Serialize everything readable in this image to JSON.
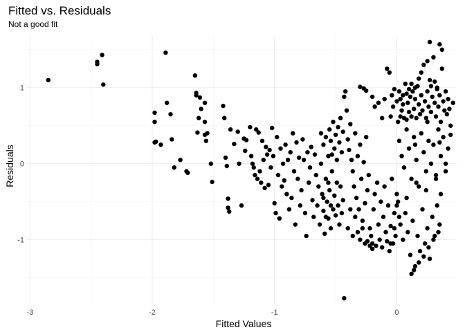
{
  "chart_data": {
    "type": "scatter",
    "title": "Fitted vs. Residuals",
    "subtitle": "Not a good fit",
    "xlabel": "Fitted Values",
    "ylabel": "Residuals",
    "xlim": [
      -3.03,
      0.49
    ],
    "ylim": [
      -1.85,
      1.68
    ],
    "x_ticks": [
      -3,
      -2,
      -1,
      0
    ],
    "x_tick_labels": [
      "-3",
      "-2",
      "-1",
      "0"
    ],
    "y_ticks": [
      -1,
      0,
      1
    ],
    "y_tick_labels": [
      "-1",
      "0",
      "1"
    ],
    "x_minor_ticks": [
      -2.5,
      -1.5,
      -0.5
    ],
    "y_minor_ticks": [
      -1.5,
      -0.5,
      0.5,
      1.5
    ],
    "grid": true,
    "legend": "none",
    "point_color": "#000000",
    "points": [
      [
        -2.85,
        1.1
      ],
      [
        -2.45,
        1.34
      ],
      [
        -2.45,
        1.31
      ],
      [
        -2.41,
        1.43
      ],
      [
        -2.4,
        1.04
      ],
      [
        -1.98,
        0.67
      ],
      [
        -1.98,
        0.55
      ],
      [
        -1.98,
        0.28
      ],
      [
        -1.97,
        0.29
      ],
      [
        -1.93,
        0.25
      ],
      [
        -1.89,
        1.46
      ],
      [
        -1.88,
        0.8
      ],
      [
        -1.85,
        0.65
      ],
      [
        -1.84,
        0.32
      ],
      [
        -1.82,
        -0.05
      ],
      [
        -1.77,
        0.05
      ],
      [
        -1.72,
        -0.1
      ],
      [
        -1.71,
        -0.12
      ],
      [
        -1.65,
        1.16
      ],
      [
        -1.64,
        0.93
      ],
      [
        -1.64,
        0.9
      ],
      [
        -1.63,
        0.41
      ],
      [
        -1.62,
        0.6
      ],
      [
        -1.61,
        0.87
      ],
      [
        -1.6,
        0.72
      ],
      [
        -1.57,
        0.8
      ],
      [
        -1.57,
        0.55
      ],
      [
        -1.57,
        0.38
      ],
      [
        -1.56,
        0.3
      ],
      [
        -1.55,
        0.4
      ],
      [
        -1.52,
        0.0
      ],
      [
        -1.51,
        -0.24
      ],
      [
        -1.42,
        0.76
      ],
      [
        -1.41,
        0.6
      ],
      [
        -1.4,
        0.08
      ],
      [
        -1.39,
        -0.03
      ],
      [
        -1.38,
        -0.46
      ],
      [
        -1.38,
        -0.58
      ],
      [
        -1.37,
        -0.63
      ],
      [
        -1.36,
        0.45
      ],
      [
        -1.33,
        0.26
      ],
      [
        -1.3,
        0.42
      ],
      [
        -1.29,
        0.0
      ],
      [
        -1.27,
        -0.55
      ],
      [
        -1.25,
        0.33
      ],
      [
        -1.24,
        0.17
      ],
      [
        -1.23,
        0.31
      ],
      [
        -1.2,
        0.48
      ],
      [
        -1.19,
        0.1
      ],
      [
        -1.18,
        0.0
      ],
      [
        -1.17,
        -0.05
      ],
      [
        -1.16,
        -0.15
      ],
      [
        -1.15,
        0.45
      ],
      [
        -1.14,
        -0.2
      ],
      [
        -1.13,
        0.41
      ],
      [
        -1.12,
        -0.1
      ],
      [
        -1.11,
        -0.25
      ],
      [
        -1.1,
        0.3
      ],
      [
        -1.09,
        0.05
      ],
      [
        -1.08,
        -0.32
      ],
      [
        -1.07,
        0.22
      ],
      [
        -1.06,
        0.12
      ],
      [
        -1.05,
        -0.28
      ],
      [
        -1.04,
        0.18
      ],
      [
        -1.03,
        -0.05
      ],
      [
        -1.02,
        0.47
      ],
      [
        -1.01,
        0.1
      ],
      [
        -1.0,
        -0.52
      ],
      [
        -0.99,
        -0.65
      ],
      [
        -0.98,
        0.35
      ],
      [
        -0.97,
        -0.15
      ],
      [
        -0.96,
        -0.72
      ],
      [
        -0.95,
        0.2
      ],
      [
        -0.94,
        -0.3
      ],
      [
        -0.93,
        0.0
      ],
      [
        -0.92,
        -0.22
      ],
      [
        -0.91,
        0.25
      ],
      [
        -0.9,
        -0.4
      ],
      [
        -0.89,
        0.05
      ],
      [
        -0.88,
        -0.6
      ],
      [
        -0.87,
        0.15
      ],
      [
        -0.86,
        -0.45
      ],
      [
        -0.85,
        0.4
      ],
      [
        -0.84,
        -0.1
      ],
      [
        -0.83,
        -0.8
      ],
      [
        -0.82,
        0.28
      ],
      [
        -0.81,
        -0.2
      ],
      [
        -0.8,
        0.08
      ],
      [
        -0.79,
        -0.55
      ],
      [
        -0.78,
        -0.35
      ],
      [
        -0.77,
        0.32
      ],
      [
        -0.76,
        0.05
      ],
      [
        -0.75,
        -0.65
      ],
      [
        -0.74,
        -0.95
      ],
      [
        -0.73,
        0.15
      ],
      [
        -0.72,
        -0.25
      ],
      [
        -0.71,
        -0.05
      ],
      [
        -0.7,
        0.22
      ],
      [
        -0.69,
        -0.48
      ],
      [
        -0.68,
        -0.7
      ],
      [
        -0.67,
        0.12
      ],
      [
        -0.66,
        -0.15
      ],
      [
        -0.65,
        -0.55
      ],
      [
        -0.64,
        -0.3
      ],
      [
        -0.63,
        -0.8
      ],
      [
        -0.62,
        0.0
      ],
      [
        -0.61,
        -0.4
      ],
      [
        -0.6,
        -0.62
      ],
      [
        -0.59,
        -0.92
      ],
      [
        -0.58,
        -0.2
      ],
      [
        -0.57,
        -0.5
      ],
      [
        -0.56,
        -0.72
      ],
      [
        -0.55,
        -0.35
      ],
      [
        -0.54,
        -0.85
      ],
      [
        -0.53,
        -0.1
      ],
      [
        -0.52,
        -0.6
      ],
      [
        -0.51,
        -0.42
      ],
      [
        -0.5,
        -0.68
      ],
      [
        -0.49,
        -0.25
      ],
      [
        -0.48,
        -0.55
      ],
      [
        -0.47,
        -0.8
      ],
      [
        -0.46,
        -0.3
      ],
      [
        -0.45,
        -0.65
      ],
      [
        -0.44,
        -0.48
      ],
      [
        -0.43,
        -1.77
      ],
      [
        -0.62,
        0.4
      ],
      [
        -0.6,
        0.25
      ],
      [
        -0.58,
        0.35
      ],
      [
        -0.56,
        0.1
      ],
      [
        -0.55,
        0.45
      ],
      [
        -0.54,
        0.3
      ],
      [
        -0.53,
        0.12
      ],
      [
        -0.52,
        0.55
      ],
      [
        -0.51,
        0.2
      ],
      [
        -0.5,
        0.38
      ],
      [
        -0.49,
        0.05
      ],
      [
        -0.48,
        0.48
      ],
      [
        -0.47,
        0.28
      ],
      [
        -0.46,
        0.6
      ],
      [
        -0.45,
        0.15
      ],
      [
        -0.44,
        0.42
      ],
      [
        -0.43,
        0.88
      ],
      [
        -0.42,
        0.95
      ],
      [
        -0.41,
        0.7
      ],
      [
        -0.4,
        0.32
      ],
      [
        -0.39,
        0.18
      ],
      [
        -0.38,
        0.52
      ],
      [
        -0.37,
        0.05
      ],
      [
        -0.36,
        -0.1
      ],
      [
        -0.35,
        -0.3
      ],
      [
        -0.34,
        0.4
      ],
      [
        -0.33,
        -0.45
      ],
      [
        -0.32,
        0.1
      ],
      [
        -0.31,
        -0.6
      ],
      [
        -0.3,
        0.25
      ],
      [
        -0.29,
        -0.2
      ],
      [
        -0.28,
        -0.75
      ],
      [
        -0.27,
        0.02
      ],
      [
        -0.26,
        -0.52
      ],
      [
        -0.25,
        0.35
      ],
      [
        -0.24,
        -0.35
      ],
      [
        -0.23,
        -0.15
      ],
      [
        -0.22,
        -0.85
      ],
      [
        -0.21,
        -0.95
      ],
      [
        -0.2,
        -1.05
      ],
      [
        -0.19,
        -0.6
      ],
      [
        -0.18,
        -0.4
      ],
      [
        -0.17,
        -1.08
      ],
      [
        -0.16,
        -0.25
      ],
      [
        -0.15,
        -0.8
      ],
      [
        -0.14,
        -1.0
      ],
      [
        -0.13,
        -0.5
      ],
      [
        -0.12,
        -1.1
      ],
      [
        -0.11,
        -0.7
      ],
      [
        -0.1,
        -0.3
      ],
      [
        -0.09,
        -0.9
      ],
      [
        -0.08,
        -1.02
      ],
      [
        -0.07,
        -0.55
      ],
      [
        -0.06,
        -1.15
      ],
      [
        -0.05,
        -0.82
      ],
      [
        -0.04,
        -0.2
      ],
      [
        -0.03,
        -1.05
      ],
      [
        -0.02,
        -0.65
      ],
      [
        -0.01,
        -0.95
      ],
      [
        0.0,
        -0.4
      ],
      [
        -0.6,
        -0.45
      ],
      [
        -0.58,
        -0.7
      ],
      [
        -0.56,
        -0.25
      ],
      [
        -0.54,
        -0.55
      ],
      [
        -0.4,
        -0.85
      ],
      [
        -0.38,
        -0.6
      ],
      [
        -0.36,
        -0.95
      ],
      [
        -0.34,
        -0.7
      ],
      [
        -0.32,
        -0.9
      ],
      [
        -0.3,
        -1.0
      ],
      [
        -0.28,
        -0.85
      ],
      [
        -0.26,
        -1.05
      ],
      [
        -0.24,
        -1.02
      ],
      [
        -0.22,
        -1.08
      ],
      [
        -0.2,
        -1.12
      ],
      [
        -0.3,
        1.01
      ],
      [
        -0.27,
        0.99
      ],
      [
        -0.25,
        0.96
      ],
      [
        -0.2,
        0.88
      ],
      [
        -0.18,
        0.75
      ],
      [
        -0.15,
        0.8
      ],
      [
        -0.12,
        0.6
      ],
      [
        -0.1,
        0.85
      ],
      [
        -0.08,
        1.25
      ],
      [
        -0.06,
        1.2
      ],
      [
        -0.05,
        0.62
      ],
      [
        -0.04,
        0.9
      ],
      [
        -0.03,
        0.75
      ],
      [
        -0.02,
        0.98
      ],
      [
        0.0,
        0.82
      ],
      [
        0.01,
        0.55
      ],
      [
        0.02,
        0.95
      ],
      [
        0.03,
        0.62
      ],
      [
        0.04,
        0.7
      ],
      [
        0.05,
        0.9
      ],
      [
        0.06,
        0.6
      ],
      [
        0.07,
        1.05
      ],
      [
        0.08,
        0.58
      ],
      [
        0.09,
        0.8
      ],
      [
        0.1,
        0.68
      ],
      [
        0.11,
        0.88
      ],
      [
        0.12,
        0.62
      ],
      [
        0.13,
        0.95
      ],
      [
        0.14,
        0.72
      ],
      [
        0.15,
        0.85
      ],
      [
        0.16,
        0.6
      ],
      [
        0.17,
        1.02
      ],
      [
        0.18,
        0.78
      ],
      [
        0.19,
        0.65
      ],
      [
        0.2,
        0.9
      ],
      [
        0.21,
        0.7
      ],
      [
        0.22,
        1.3
      ],
      [
        0.23,
        0.82
      ],
      [
        0.24,
        0.6
      ],
      [
        0.25,
        0.95
      ],
      [
        0.26,
        0.75
      ],
      [
        0.27,
        1.1
      ],
      [
        0.28,
        0.68
      ],
      [
        0.29,
        0.88
      ],
      [
        0.3,
        1.4
      ],
      [
        0.31,
        0.8
      ],
      [
        0.32,
        0.62
      ],
      [
        0.33,
        1.0
      ],
      [
        0.34,
        0.75
      ],
      [
        0.35,
        0.9
      ],
      [
        0.36,
        0.55
      ],
      [
        0.37,
        1.25
      ],
      [
        0.38,
        0.82
      ],
      [
        0.39,
        0.7
      ],
      [
        0.4,
        0.95
      ],
      [
        0.41,
        0.65
      ],
      [
        0.42,
        0.85
      ],
      [
        0.43,
        0.72
      ],
      [
        0.44,
        0.5
      ],
      [
        0.46,
        0.8
      ],
      [
        0.27,
        1.6
      ],
      [
        0.35,
        1.57
      ],
      [
        0.37,
        1.5
      ],
      [
        0.25,
        1.35
      ],
      [
        0.2,
        1.2
      ],
      [
        0.18,
        1.12
      ],
      [
        0.15,
        1.0
      ],
      [
        0.12,
        1.05
      ],
      [
        0.1,
        0.98
      ],
      [
        0.08,
        0.92
      ],
      [
        0.05,
        0.78
      ],
      [
        0.03,
        0.85
      ],
      [
        0.28,
        1.02
      ],
      [
        0.31,
        1.08
      ],
      [
        0.33,
        0.98
      ],
      [
        0.02,
        0.3
      ],
      [
        0.04,
        0.1
      ],
      [
        0.06,
        -0.05
      ],
      [
        0.08,
        0.45
      ],
      [
        0.1,
        0.2
      ],
      [
        0.12,
        -0.2
      ],
      [
        0.14,
        0.35
      ],
      [
        0.16,
        0.05
      ],
      [
        0.18,
        -0.3
      ],
      [
        0.2,
        0.4
      ],
      [
        0.22,
        0.15
      ],
      [
        0.24,
        -0.1
      ],
      [
        0.26,
        0.3
      ],
      [
        0.28,
        0.0
      ],
      [
        0.3,
        0.25
      ],
      [
        0.32,
        -0.15
      ],
      [
        0.34,
        0.45
      ],
      [
        0.36,
        0.1
      ],
      [
        0.38,
        0.35
      ],
      [
        0.4,
        0.0
      ],
      [
        0.42,
        0.2
      ],
      [
        0.44,
        0.38
      ],
      [
        0.15,
        0.25
      ],
      [
        0.25,
        0.55
      ],
      [
        0.35,
        0.28
      ],
      [
        0.01,
        -0.5
      ],
      [
        0.03,
        -0.8
      ],
      [
        0.05,
        -1.0
      ],
      [
        0.07,
        -0.65
      ],
      [
        0.09,
        -0.9
      ],
      [
        0.11,
        -1.2
      ],
      [
        0.13,
        -0.75
      ],
      [
        0.15,
        -1.35
      ],
      [
        0.17,
        -0.95
      ],
      [
        0.19,
        -1.15
      ],
      [
        0.21,
        -0.6
      ],
      [
        0.23,
        -1.05
      ],
      [
        0.25,
        -0.85
      ],
      [
        0.27,
        -1.25
      ],
      [
        0.29,
        -0.7
      ],
      [
        0.31,
        -0.95
      ],
      [
        0.33,
        -0.55
      ],
      [
        0.35,
        -0.8
      ],
      [
        0.12,
        -1.45
      ],
      [
        0.14,
        -1.4
      ],
      [
        0.18,
        -1.3
      ],
      [
        0.22,
        -1.22
      ],
      [
        0.26,
        -1.1
      ],
      [
        0.3,
        -1.0
      ],
      [
        0.34,
        -0.9
      ],
      [
        0.0,
        -0.55
      ],
      [
        -0.02,
        -0.85
      ],
      [
        -0.05,
        -1.05
      ],
      [
        0.02,
        -0.7
      ],
      [
        0.08,
        -0.45
      ],
      [
        0.16,
        -0.25
      ],
      [
        0.24,
        -0.35
      ],
      [
        0.32,
        -0.2
      ],
      [
        0.36,
        -0.4
      ],
      [
        0.4,
        -0.1
      ]
    ]
  }
}
